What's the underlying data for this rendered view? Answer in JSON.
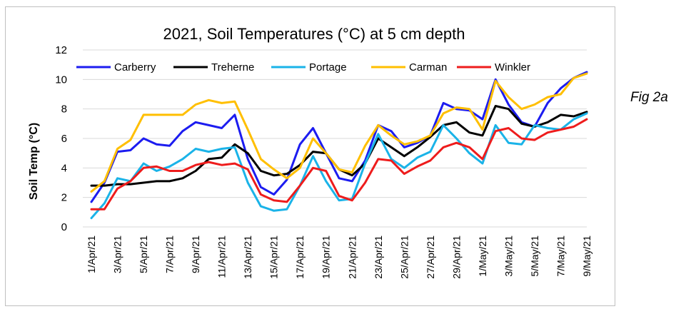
{
  "fig_label": "Fig 2a",
  "chart_data": {
    "type": "line",
    "title": "2021, Soil Temperatures (°C) at 5 cm depth",
    "xlabel": "",
    "ylabel": "Soil Temp (°C)",
    "ylim": [
      0,
      12
    ],
    "yticks": [
      0,
      2,
      4,
      6,
      8,
      10,
      12
    ],
    "grid": "horizontal",
    "legend_position": "top",
    "categories": [
      "1/Apr/21",
      "2/Apr/21",
      "3/Apr/21",
      "4/Apr/21",
      "5/Apr/21",
      "6/Apr/21",
      "7/Apr/21",
      "8/Apr/21",
      "9/Apr/21",
      "10/Apr/21",
      "11/Apr/21",
      "12/Apr/21",
      "13/Apr/21",
      "14/Apr/21",
      "15/Apr/21",
      "16/Apr/21",
      "17/Apr/21",
      "18/Apr/21",
      "19/Apr/21",
      "20/Apr/21",
      "21/Apr/21",
      "22/Apr/21",
      "23/Apr/21",
      "24/Apr/21",
      "25/Apr/21",
      "26/Apr/21",
      "27/Apr/21",
      "28/Apr/21",
      "29/Apr/21",
      "30/Apr/21",
      "1/May/21",
      "2/May/21",
      "3/May/21",
      "4/May/21",
      "5/May/21",
      "6/May/21",
      "7/May/21",
      "8/May/21",
      "9/May/21"
    ],
    "tick_labels": [
      "1/Apr/21",
      "3/Apr/21",
      "5/Apr/21",
      "7/Apr/21",
      "9/Apr/21",
      "11/Apr/21",
      "13/Apr/21",
      "15/Apr/21",
      "17/Apr/21",
      "19/Apr/21",
      "21/Apr/21",
      "23/Apr/21",
      "25/Apr/21",
      "27/Apr/21",
      "29/Apr/21",
      "1/May/21",
      "3/May/21",
      "5/May/21",
      "7/May/21",
      "9/May/21"
    ],
    "series": [
      {
        "name": "Carberry",
        "color": "#1c1cf0",
        "values": [
          1.7,
          3.0,
          5.1,
          5.2,
          6.0,
          5.6,
          5.5,
          6.5,
          7.1,
          6.9,
          6.7,
          7.6,
          4.6,
          2.7,
          2.2,
          3.2,
          5.6,
          6.7,
          5.0,
          3.3,
          3.1,
          4.5,
          6.9,
          6.5,
          5.4,
          5.7,
          6.2,
          8.4,
          8.0,
          7.9,
          7.3,
          10.0,
          8.3,
          7.1,
          6.8,
          8.4,
          9.4,
          10.1,
          10.5
        ]
      },
      {
        "name": "Treherne",
        "color": "#000000",
        "values": [
          2.8,
          2.8,
          2.9,
          2.9,
          3.0,
          3.1,
          3.1,
          3.3,
          3.8,
          4.6,
          4.7,
          5.6,
          5.0,
          3.8,
          3.5,
          3.6,
          4.2,
          5.1,
          5.0,
          3.9,
          3.5,
          4.3,
          6.0,
          5.4,
          4.8,
          5.4,
          6.1,
          6.9,
          7.1,
          6.4,
          6.2,
          8.2,
          8.0,
          7.0,
          6.8,
          7.1,
          7.6,
          7.5,
          7.8
        ]
      },
      {
        "name": "Portage",
        "color": "#1ab3e8",
        "values": [
          0.6,
          1.6,
          3.3,
          3.1,
          4.3,
          3.8,
          4.1,
          4.6,
          5.3,
          5.1,
          5.3,
          5.4,
          3.0,
          1.4,
          1.1,
          1.2,
          2.8,
          4.8,
          3.1,
          1.8,
          1.9,
          4.3,
          6.3,
          4.6,
          4.0,
          4.7,
          5.1,
          6.9,
          6.0,
          5.0,
          4.3,
          6.9,
          5.7,
          5.6,
          6.9,
          6.7,
          6.6,
          7.3,
          7.7
        ]
      },
      {
        "name": "Carman",
        "color": "#ffbf00",
        "values": [
          2.4,
          3.1,
          5.3,
          5.9,
          7.6,
          7.6,
          7.6,
          7.6,
          8.3,
          8.6,
          8.4,
          8.5,
          6.6,
          4.6,
          3.9,
          3.3,
          4.0,
          6.0,
          5.0,
          3.9,
          3.7,
          5.5,
          6.9,
          6.2,
          5.6,
          5.8,
          6.2,
          7.7,
          8.1,
          8.0,
          6.6,
          9.9,
          8.8,
          8.0,
          8.3,
          8.8,
          9.0,
          10.1,
          10.4
        ]
      },
      {
        "name": "Winkler",
        "color": "#ee1c1c",
        "values": [
          1.2,
          1.2,
          2.6,
          3.1,
          4.0,
          4.1,
          3.8,
          3.8,
          4.2,
          4.4,
          4.2,
          4.3,
          3.9,
          2.2,
          1.8,
          1.7,
          2.8,
          4.0,
          3.8,
          2.1,
          1.8,
          3.0,
          4.6,
          4.5,
          3.6,
          4.1,
          4.5,
          5.4,
          5.7,
          5.4,
          4.6,
          6.5,
          6.7,
          6.0,
          5.9,
          6.4,
          6.6,
          6.8,
          7.3
        ]
      }
    ]
  }
}
